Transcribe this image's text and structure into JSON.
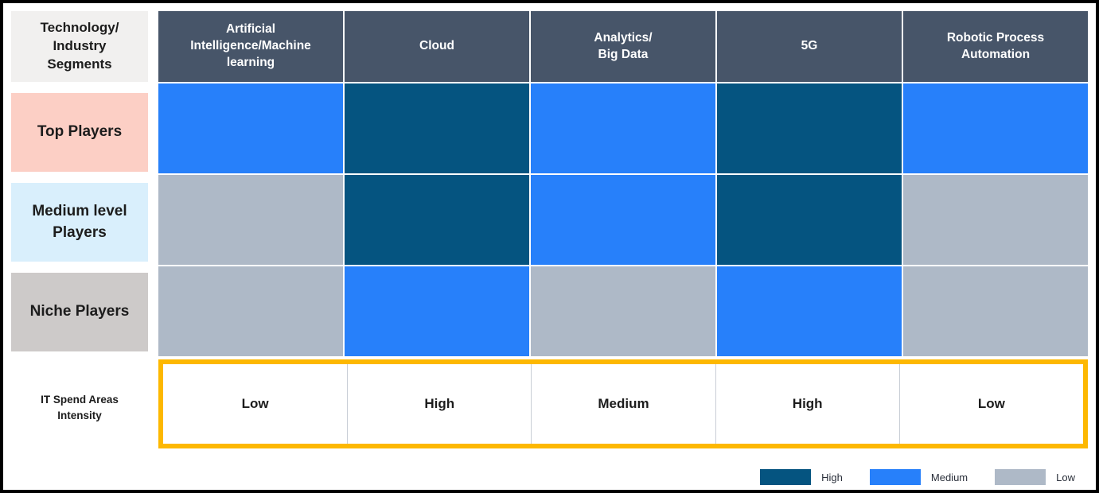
{
  "corner": {
    "label": "Technology/\nIndustry\nSegments"
  },
  "levels": {
    "High": "#055480",
    "Medium": "#2780FA",
    "Low": "#AEB9C7"
  },
  "colors": {
    "header_bg": "#475569",
    "header_text": "#ffffff",
    "corner_bg": "#F1F0EF",
    "intensity_border": "#FDB801",
    "frame": "#000000"
  },
  "matrix": {
    "columns": [
      {
        "label": "Artificial\nIntelligence/Machine\nlearning"
      },
      {
        "label": "Cloud"
      },
      {
        "label": "Analytics/\nBig Data"
      },
      {
        "label": "5G"
      },
      {
        "label": "Robotic Process\nAutomation"
      }
    ],
    "rows": [
      {
        "label": "Top Players",
        "label_bg": "#FCCFC5",
        "values": [
          "Medium",
          "High",
          "Medium",
          "High",
          "Medium"
        ]
      },
      {
        "label": "Medium level\nPlayers",
        "label_bg": "#D9EFFC",
        "values": [
          "Low",
          "High",
          "Medium",
          "High",
          "Low"
        ]
      },
      {
        "label": "Niche Players",
        "label_bg": "#CDCAC9",
        "values": [
          "Low",
          "Medium",
          "Low",
          "Medium",
          "Low"
        ]
      }
    ],
    "intensity": {
      "label": "IT Spend Areas\nIntensity",
      "values": [
        "Low",
        "High",
        "Medium",
        "High",
        "Low"
      ]
    }
  },
  "legend": [
    {
      "label": "High",
      "level": "High"
    },
    {
      "label": "Medium",
      "level": "Medium"
    },
    {
      "label": "Low",
      "level": "Low"
    }
  ],
  "chart_data": {
    "type": "heatmap",
    "title": "",
    "corner_label": "Technology/ Industry Segments",
    "x_categories": [
      "Artificial Intelligence/Machine learning",
      "Cloud",
      "Analytics/Big Data",
      "5G",
      "Robotic Process Automation"
    ],
    "y_categories": [
      "Top Players",
      "Medium level Players",
      "Niche Players"
    ],
    "values": [
      [
        "Medium",
        "High",
        "Medium",
        "High",
        "Medium"
      ],
      [
        "Low",
        "High",
        "Medium",
        "High",
        "Low"
      ],
      [
        "Low",
        "Medium",
        "Low",
        "Medium",
        "Low"
      ]
    ],
    "footer_row": {
      "label": "IT Spend Areas Intensity",
      "values": [
        "Low",
        "High",
        "Medium",
        "High",
        "Low"
      ]
    },
    "color_scale": {
      "High": "#055480",
      "Medium": "#2780FA",
      "Low": "#AEB9C7"
    },
    "legend": [
      {
        "label": "High",
        "color": "#055480"
      },
      {
        "label": "Medium",
        "color": "#2780FA"
      },
      {
        "label": "Low",
        "color": "#AEB9C7"
      }
    ],
    "legend_position": "bottom-right",
    "grid": false
  }
}
